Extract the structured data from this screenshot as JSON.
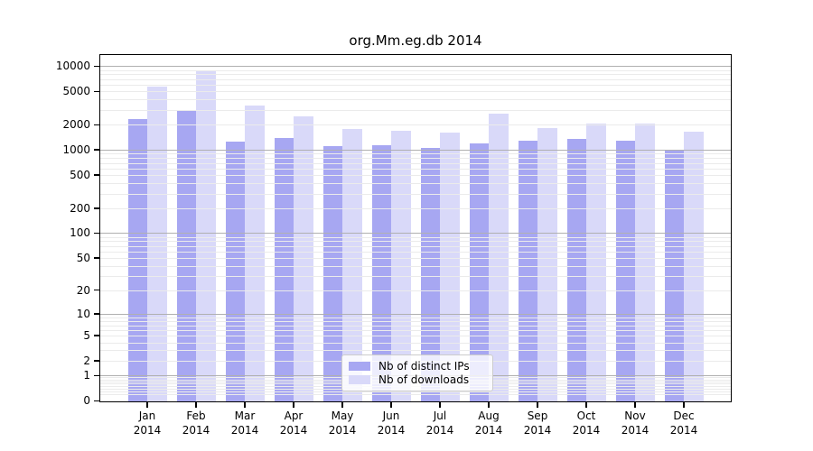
{
  "title": "org.Mm.eg.db 2014",
  "chart_data": {
    "type": "bar",
    "title": "org.Mm.eg.db 2014",
    "categories": [
      "Jan",
      "Feb",
      "Mar",
      "Apr",
      "May",
      "Jun",
      "Jul",
      "Aug",
      "Sep",
      "Oct",
      "Nov",
      "Dec"
    ],
    "year_label": "2014",
    "series": [
      {
        "name": "Nb of distinct IPs",
        "color": "#a7a7f2",
        "values": [
          2350,
          3000,
          1270,
          1380,
          1120,
          1140,
          1060,
          1200,
          1300,
          1360,
          1290,
          1000
        ]
      },
      {
        "name": "Nb of downloads",
        "color": "#d9d9f9",
        "values": [
          5700,
          8900,
          3360,
          2500,
          1780,
          1700,
          1610,
          2700,
          1840,
          2060,
          2080,
          1660
        ]
      }
    ],
    "xlabel": "",
    "ylabel": "",
    "y_scale": "log10(1+x)",
    "ylim": [
      0,
      14000
    ],
    "y_tick_values": [
      10000,
      5000,
      2000,
      1000,
      500,
      200,
      100,
      50,
      20,
      10,
      5,
      2,
      1,
      0
    ],
    "grid": {
      "on": true,
      "major_at": [
        1,
        10,
        100,
        1000,
        10000
      ],
      "major_color": "#b0b0b0",
      "minor_color": "#ebebeb"
    },
    "legend_position": "lower center inside"
  }
}
